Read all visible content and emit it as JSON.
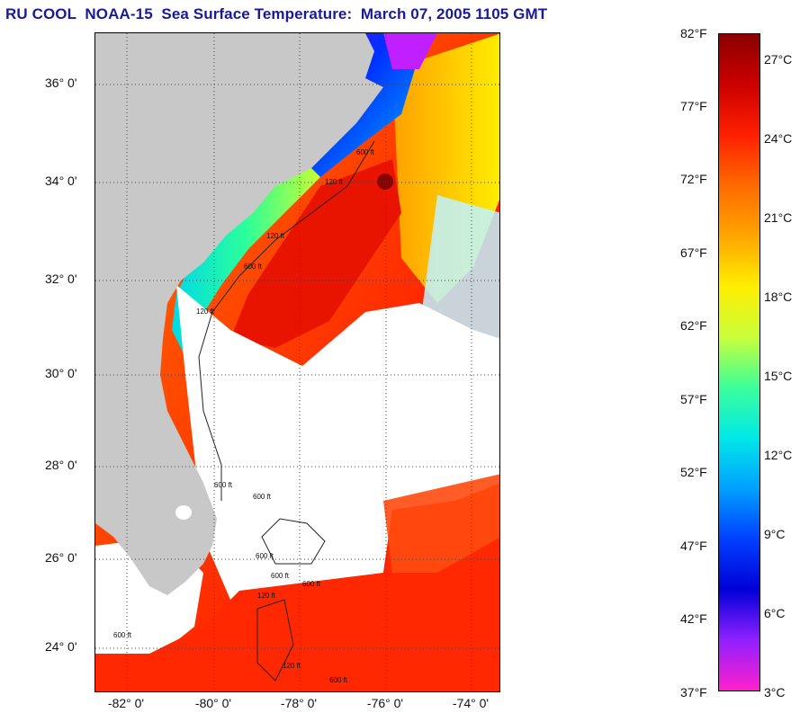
{
  "title": "RU COOL  NOAA-15  Sea Surface Temperature:  March 07, 2005 1105 GMT",
  "map": {
    "latitude_ticks": [
      "36° 0'",
      "34° 0'",
      "32° 0'",
      "30° 0'",
      "28° 0'",
      "26° 0'",
      "24° 0'"
    ],
    "longitude_ticks": [
      "-82° 0'",
      "-80° 0'",
      "-78° 0'",
      "-76° 0'",
      "-74° 0'"
    ],
    "contour_labels": [
      "120 ft",
      "600 ft",
      "120 ft",
      "600 ft",
      "120 ft",
      "600 ft",
      "600 ft",
      "600 ft",
      "600 ft",
      "600 ft",
      "120 ft",
      "600 ft",
      "120 ft",
      "600 ft"
    ],
    "colors": {
      "land": "#c8c8c8",
      "cloud": "#ffffff",
      "grid": "#444444",
      "contour": "#222222"
    }
  },
  "colorbar": {
    "fahrenheit_ticks": [
      "82°F",
      "77°F",
      "72°F",
      "67°F",
      "62°F",
      "57°F",
      "52°F",
      "47°F",
      "42°F",
      "37°F"
    ],
    "celsius_ticks": [
      "27°C",
      "24°C",
      "21°C",
      "18°C",
      "15°C",
      "12°C",
      "9°C",
      "6°C",
      "3°C"
    ],
    "gradient_colors": [
      "#8b0000",
      "#cc0000",
      "#ff2000",
      "#ff6a00",
      "#ffa500",
      "#ffee00",
      "#c8ff3a",
      "#3cff9a",
      "#00e8e8",
      "#00a0ff",
      "#0040ff",
      "#0000d8",
      "#9020ff",
      "#ff20cc"
    ]
  }
}
